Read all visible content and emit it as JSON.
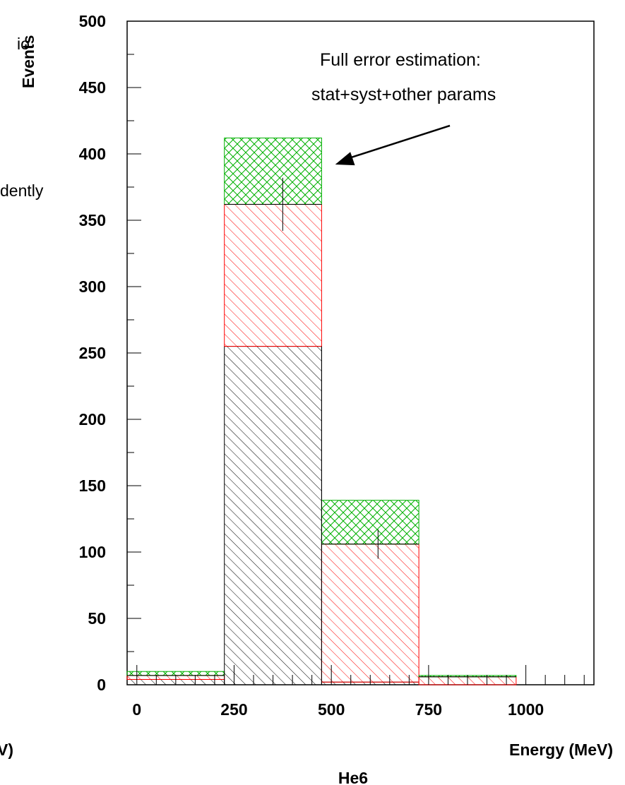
{
  "chart_data": {
    "type": "bar",
    "stacked_histogram": true,
    "xlabel": "Energy (MeV)",
    "ylabel": "Events",
    "caption": "He6",
    "xlim": [
      -25,
      1175
    ],
    "ylim": [
      0,
      500
    ],
    "x_ticks": [
      "0",
      "250",
      "500",
      "750",
      "1000"
    ],
    "y_ticks": [
      "0",
      "50",
      "100",
      "150",
      "200",
      "250",
      "300",
      "350",
      "400",
      "450",
      "500"
    ],
    "bins": [
      {
        "x0": -25,
        "x1": 225,
        "black": 4,
        "red": 7,
        "green_top": 10,
        "error_bar": null
      },
      {
        "x0": 225,
        "x1": 475,
        "black": 255,
        "red": 362,
        "green_top": 412,
        "error_bar": {
          "x": 375,
          "low": 342,
          "high": 382
        }
      },
      {
        "x0": 475,
        "x1": 725,
        "black": 2,
        "red": 106,
        "green_top": 139,
        "error_bar": {
          "x": 620,
          "low": 95,
          "high": 117
        }
      },
      {
        "x0": 725,
        "x1": 975,
        "black": 0,
        "red": 6,
        "green_top": 7,
        "error_bar": null
      }
    ],
    "series": [
      {
        "color": "#000000",
        "pattern": "hatch"
      },
      {
        "color": "#ff0000",
        "pattern": "hatch"
      },
      {
        "color": "#00b000",
        "pattern": "crosshatch"
      }
    ],
    "annotation": {
      "lines": [
        "Full error estimation:",
        "stat+syst+other params"
      ],
      "arrow_to": {
        "x": 510,
        "y": 392
      }
    },
    "cutoff_text": {
      "left_top": "io",
      "left_mid": "dently",
      "left_bottom": "V)"
    }
  }
}
